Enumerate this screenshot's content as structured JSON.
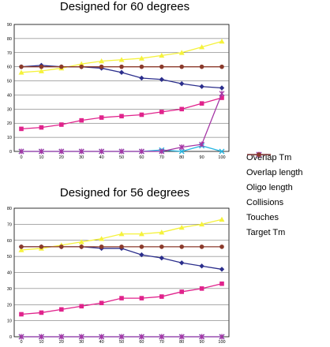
{
  "chart_data": [
    {
      "type": "line",
      "title": "Designed for 60 degrees",
      "x": [
        0,
        10,
        20,
        30,
        40,
        50,
        60,
        70,
        80,
        90,
        100
      ],
      "ylim": [
        0,
        90
      ],
      "yticks": [
        0,
        10,
        20,
        30,
        40,
        50,
        60,
        70,
        80,
        90
      ],
      "grid": "horizontal",
      "series": [
        {
          "name": "Overlap Tm",
          "color": "#2b2e8c",
          "marker": "diamond",
          "values": [
            60,
            61,
            60,
            60,
            59,
            56,
            52,
            51,
            48,
            46,
            45
          ]
        },
        {
          "name": "Overlap length",
          "color": "#e0238c",
          "marker": "square",
          "values": [
            16,
            17,
            19,
            22,
            24,
            25,
            26,
            28,
            30,
            34,
            38
          ]
        },
        {
          "name": "Oligo length",
          "color": "#f5f23c",
          "marker": "triangle",
          "values": [
            56,
            57,
            59,
            62,
            64,
            65,
            66,
            68,
            70,
            74,
            78
          ]
        },
        {
          "name": "Collisions",
          "color": "#27b5e0",
          "marker": "x",
          "values": [
            0,
            0,
            0,
            0,
            0,
            0,
            0,
            1,
            0,
            4,
            0
          ]
        },
        {
          "name": "Touches",
          "color": "#a535a5",
          "marker": "star",
          "values": [
            0,
            0,
            0,
            0,
            0,
            0,
            0,
            0,
            3,
            5,
            41
          ]
        },
        {
          "name": "Target Tm",
          "color": "#8b3a2b",
          "marker": "circle",
          "values": [
            60,
            60,
            60,
            60,
            60,
            60,
            60,
            60,
            60,
            60,
            60
          ]
        }
      ]
    },
    {
      "type": "line",
      "title": "Designed for 56 degrees",
      "x": [
        0,
        10,
        20,
        30,
        40,
        50,
        60,
        70,
        80,
        90,
        100
      ],
      "ylim": [
        0,
        80
      ],
      "yticks": [
        0,
        10,
        20,
        30,
        40,
        50,
        60,
        70,
        80
      ],
      "grid": "horizontal",
      "series": [
        {
          "name": "Overlap Tm",
          "color": "#2b2e8c",
          "marker": "diamond",
          "values": [
            56,
            56,
            56,
            56,
            55,
            55,
            51,
            49,
            46,
            44,
            42
          ]
        },
        {
          "name": "Overlap length",
          "color": "#e0238c",
          "marker": "square",
          "values": [
            14,
            15,
            17,
            19,
            21,
            24,
            24,
            25,
            28,
            30,
            33
          ]
        },
        {
          "name": "Oligo length",
          "color": "#f5f23c",
          "marker": "triangle",
          "values": [
            54,
            55,
            57,
            59,
            61,
            64,
            64,
            65,
            68,
            70,
            73
          ]
        },
        {
          "name": "Collisions",
          "color": "#27b5e0",
          "marker": "x",
          "values": [
            0,
            0,
            0,
            0,
            0,
            0,
            0,
            0,
            0,
            0,
            0
          ]
        },
        {
          "name": "Touches",
          "color": "#a535a5",
          "marker": "star",
          "values": [
            0,
            0,
            0,
            0,
            0,
            0,
            0,
            0,
            0,
            0,
            0
          ]
        },
        {
          "name": "Target Tm",
          "color": "#8b3a2b",
          "marker": "circle",
          "values": [
            56,
            56,
            56,
            56,
            56,
            56,
            56,
            56,
            56,
            56,
            56
          ]
        }
      ]
    }
  ],
  "legend": {
    "placement": "right",
    "items": [
      {
        "label": "Overlap Tm",
        "color": "#2b2e8c",
        "marker": "diamond"
      },
      {
        "label": "Overlap length",
        "color": "#e0238c",
        "marker": "square"
      },
      {
        "label": "Oligo length",
        "color": "#f5f23c",
        "marker": "triangle"
      },
      {
        "label": "Collisions",
        "color": "#27b5e0",
        "marker": "x"
      },
      {
        "label": "Touches",
        "color": "#a535a5",
        "marker": "star"
      },
      {
        "label": "Target Tm",
        "color": "#8b3a2b",
        "marker": "circle"
      }
    ]
  }
}
